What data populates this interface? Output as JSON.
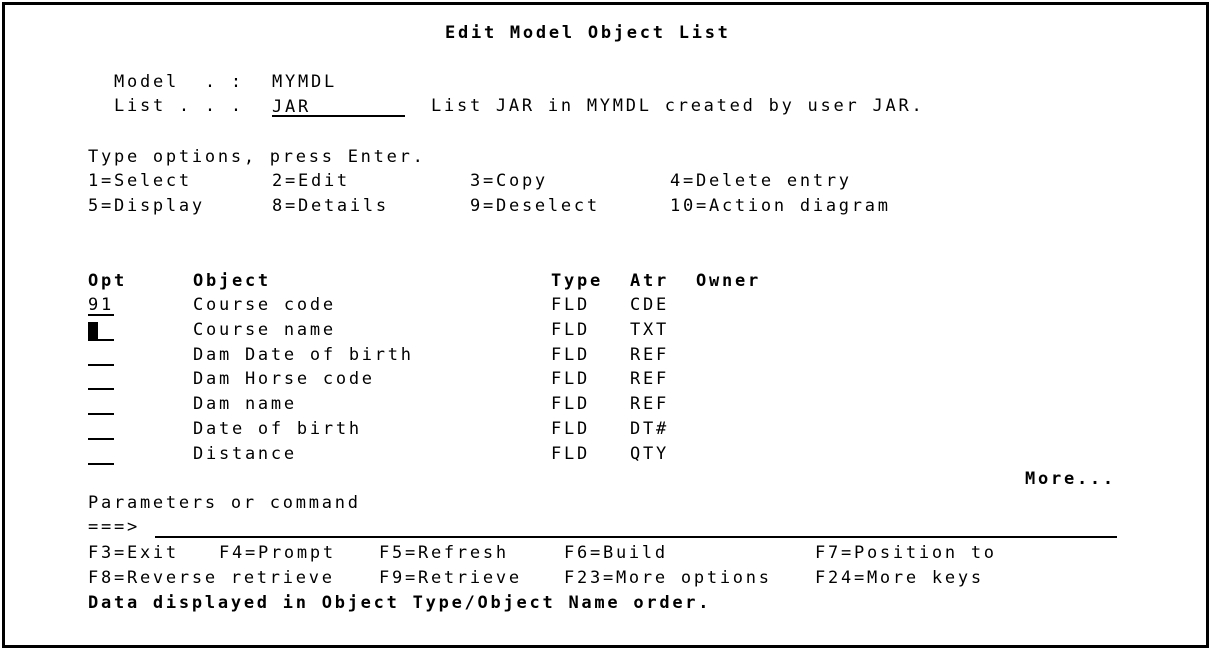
{
  "title": "Edit Model Object List",
  "model": {
    "label": "Model  . :",
    "value": "MYMDL"
  },
  "list": {
    "label": "List . . .",
    "value": "JAR",
    "description": "List JAR in MYMDL created by user JAR."
  },
  "instructions": "Type options, press Enter.",
  "options": [
    "1=Select",
    "2=Edit",
    "3=Copy",
    "4=Delete entry",
    "5=Display",
    "8=Details",
    "9=Deselect",
    "10=Action diagram"
  ],
  "columns": {
    "opt": "Opt",
    "object": "Object",
    "type": "Type",
    "atr": "Atr",
    "owner": "Owner"
  },
  "rows": [
    {
      "opt": "91",
      "object": "Course code",
      "type": "FLD",
      "atr": "CDE"
    },
    {
      "opt": "",
      "object": "Course name",
      "type": "FLD",
      "atr": "TXT"
    },
    {
      "opt": "",
      "object": "Dam Date of birth",
      "type": "FLD",
      "atr": "REF"
    },
    {
      "opt": "",
      "object": "Dam Horse code",
      "type": "FLD",
      "atr": "REF"
    },
    {
      "opt": "",
      "object": "Dam name",
      "type": "FLD",
      "atr": "REF"
    },
    {
      "opt": "",
      "object": "Date of birth",
      "type": "FLD",
      "atr": "DT#"
    },
    {
      "opt": "",
      "object": "Distance",
      "type": "FLD",
      "atr": "QTY"
    }
  ],
  "more": "More...",
  "command": {
    "label": "Parameters or command",
    "prompt": "===>",
    "value": ""
  },
  "function_keys": [
    "F3=Exit",
    "F4=Prompt",
    "F5=Refresh",
    "F6=Build",
    "F7=Position to",
    "F8=Reverse retrieve",
    "F9=Retrieve",
    "F23=More options",
    "F24=More keys"
  ],
  "message": "Data displayed in Object Type/Object Name order."
}
